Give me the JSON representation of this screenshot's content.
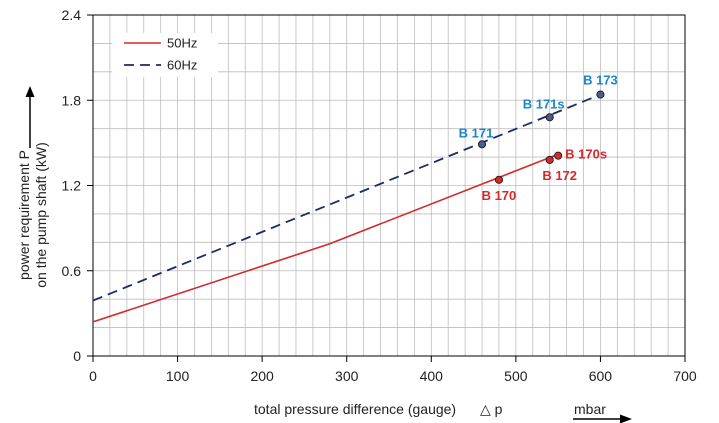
{
  "colors": {
    "series_50hz": "#d42a2a",
    "series_60hz": "#1c2a6b",
    "label_50hz": "#d42a2a",
    "label_60hz": "#1b86c8",
    "grid": "#bdbdbd",
    "axis": "#000000"
  },
  "chart_data": {
    "type": "line",
    "title": "",
    "xlabel": "total pressure difference (gauge)",
    "xlabel_symbol": "△ p",
    "xunit": "mbar",
    "ylabel_line1": "power requirement P",
    "ylabel_line2": "on the pump shaft (kW)",
    "xlim": [
      0,
      700
    ],
    "ylim": [
      0,
      2.4
    ],
    "x_ticks": [
      0,
      100,
      200,
      300,
      400,
      500,
      600,
      700
    ],
    "x_tick_labels": [
      "0",
      "100",
      "200",
      "300",
      "400",
      "500",
      "600",
      "700"
    ],
    "y_ticks": [
      0,
      0.6,
      1.2,
      1.8,
      2.4
    ],
    "y_tick_labels": [
      "0",
      "0.6",
      "1.2",
      "1.8",
      "2.4"
    ],
    "x_minor_step": 20,
    "y_minor_step": 0.2,
    "grid": true,
    "legend_position": "top-left",
    "series": [
      {
        "name": "50Hz",
        "style": "solid",
        "x": [
          0,
          280,
          550
        ],
        "y": [
          0.24,
          0.79,
          1.42
        ]
      },
      {
        "name": "60Hz",
        "style": "dashed",
        "x": [
          0,
          600
        ],
        "y": [
          0.39,
          1.84
        ]
      }
    ],
    "points": [
      {
        "label": "B 170",
        "series": "50Hz",
        "x": 480,
        "y": 1.24
      },
      {
        "label": "B 172",
        "series": "50Hz",
        "x": 540,
        "y": 1.38
      },
      {
        "label": "B 170s",
        "series": "50Hz",
        "x": 550,
        "y": 1.41
      },
      {
        "label": "B 171",
        "series": "60Hz",
        "x": 460,
        "y": 1.49
      },
      {
        "label": "B 171s",
        "series": "60Hz",
        "x": 540,
        "y": 1.68
      },
      {
        "label": "B 173",
        "series": "60Hz",
        "x": 600,
        "y": 1.84
      }
    ]
  }
}
